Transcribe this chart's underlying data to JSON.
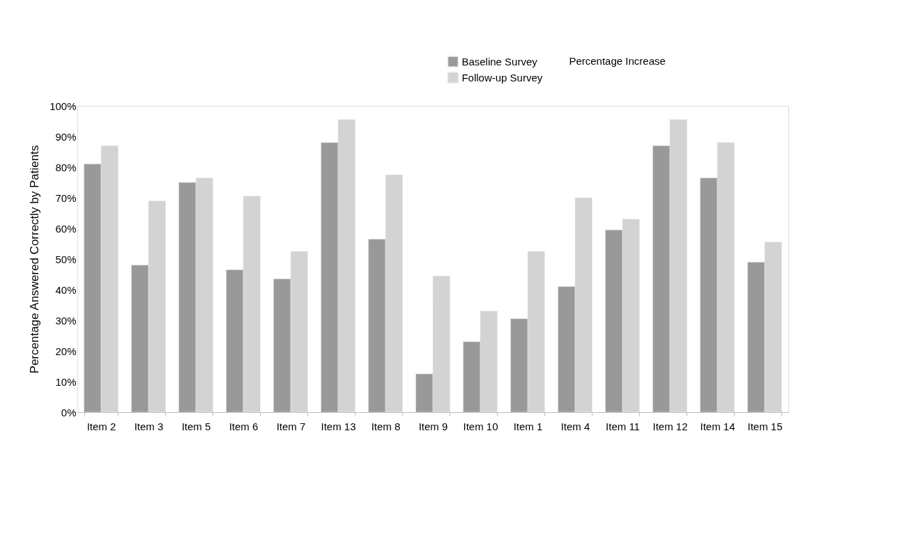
{
  "chart_data": {
    "type": "bar",
    "categories": [
      "Item 2",
      "Item 3",
      "Item 5",
      "Item 6",
      "Item 7",
      "Item 13",
      "Item 8",
      "Item 9",
      "Item 10",
      "Item 1",
      "Item 4",
      "Item 11",
      "Item 12",
      "Item 14",
      "Item 15"
    ],
    "series": [
      {
        "name": "Baseline Survey",
        "color": "#999999",
        "values": [
          81,
          48,
          75,
          46.5,
          43.5,
          88,
          56.5,
          12.5,
          23,
          30.5,
          41,
          59.5,
          87,
          76.5,
          49
        ]
      },
      {
        "name": "Follow-up Survey",
        "color": "#d3d3d3",
        "values": [
          87,
          69,
          76.5,
          70.5,
          52.5,
          95.5,
          77.5,
          44.5,
          33,
          52.5,
          70,
          63,
          95.5,
          88,
          55.5
        ]
      }
    ],
    "ylabel": "Percentage Answered Correctly by Patients",
    "ylim": [
      0,
      100
    ],
    "yticks": [
      {
        "value": 0,
        "label": "0%"
      },
      {
        "value": 10,
        "label": "10%"
      },
      {
        "value": 20,
        "label": "20%"
      },
      {
        "value": 30,
        "label": "30%"
      },
      {
        "value": 40,
        "label": "40%"
      },
      {
        "value": 50,
        "label": "50%"
      },
      {
        "value": 60,
        "label": "60%"
      },
      {
        "value": 70,
        "label": "70%"
      },
      {
        "value": 80,
        "label": "80%"
      },
      {
        "value": 90,
        "label": "90%"
      },
      {
        "value": 100,
        "label": "100%"
      }
    ],
    "annotations": [
      "Percentage Increase"
    ],
    "legend": "top right",
    "grid": false
  }
}
